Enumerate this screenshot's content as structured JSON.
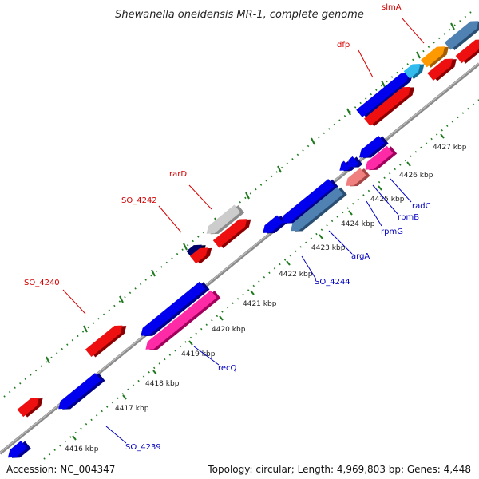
{
  "title": "Shewanella oneidensis MR-1, complete genome",
  "footer": {
    "accession": "Accession: NC_004347",
    "summary": "Topology: circular; Length: 4,969,803 bp; Genes: 4,448"
  },
  "colors": {
    "backbone": "#8a8a8a",
    "tick_major": "#1e7a1e",
    "label_forward": "#d40000",
    "label_reverse": "#0000c0"
  },
  "scale": {
    "ticks": [
      {
        "label": "4416 kbp"
      },
      {
        "label": "4417 kbp"
      },
      {
        "label": "4418 kbp"
      },
      {
        "label": "4419 kbp"
      },
      {
        "label": "4420 kbp"
      },
      {
        "label": "4421 kbp"
      },
      {
        "label": "4422 kbp"
      },
      {
        "label": "4423 kbp"
      },
      {
        "label": "4424 kbp"
      },
      {
        "label": "4425 kbp"
      },
      {
        "label": "4426 kbp"
      },
      {
        "label": "4427 kbp"
      }
    ]
  },
  "gene_labels": [
    {
      "text": "slmA",
      "strand": "forward"
    },
    {
      "text": "dfp",
      "strand": "forward"
    },
    {
      "text": "rarD",
      "strand": "forward"
    },
    {
      "text": "SO_4242",
      "strand": "forward"
    },
    {
      "text": "SO_4240",
      "strand": "forward"
    },
    {
      "text": "radC",
      "strand": "reverse"
    },
    {
      "text": "rpmB",
      "strand": "reverse"
    },
    {
      "text": "rpmG",
      "strand": "reverse"
    },
    {
      "text": "argA",
      "strand": "reverse"
    },
    {
      "text": "SO_4244",
      "strand": "reverse"
    },
    {
      "text": "recQ",
      "strand": "reverse"
    },
    {
      "text": "SO_4239",
      "strand": "reverse"
    }
  ],
  "feature_colors": [
    "blue",
    "red",
    "steelblue",
    "hotpink",
    "orange",
    "lightblue",
    "gray",
    "navy",
    "pink"
  ]
}
